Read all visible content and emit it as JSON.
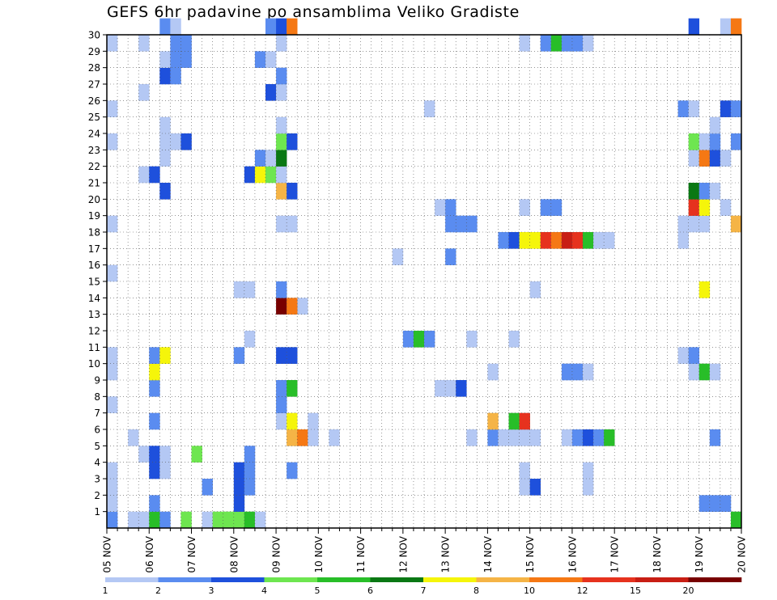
{
  "chart_data": {
    "type": "heatmap",
    "title": "GEFS 6hr padavine po ansamblima Veliko Gradiste",
    "xlabel": "",
    "ylabel": "",
    "x_tick_labels": [
      "05 NOV",
      "06 NOV",
      "07 NOV",
      "08 NOV",
      "09 NOV",
      "10 NOV",
      "11 NOV",
      "12 NOV",
      "13 NOV",
      "14 NOV",
      "15 NOV",
      "16 NOV",
      "17 NOV",
      "18 NOV",
      "19 NOV",
      "20 NOV"
    ],
    "time_steps_per_day": 4,
    "y_tick_labels": [
      "1",
      "2",
      "3",
      "4",
      "5",
      "6",
      "7",
      "8",
      "9",
      "10",
      "11",
      "12",
      "13",
      "14",
      "15",
      "16",
      "17",
      "18",
      "19",
      "20",
      "21",
      "22",
      "23",
      "24",
      "25",
      "26",
      "27",
      "28",
      "29",
      "30"
    ],
    "ylim": [
      0,
      30
    ],
    "grid": "dotted",
    "legend": {
      "placement": "bottom",
      "levels": [
        "1",
        "2",
        "3",
        "4",
        "5",
        "6",
        "7",
        "8",
        "10",
        "12",
        "15",
        "20"
      ],
      "colors": [
        "#b4c8f4",
        "#5a8cf0",
        "#1e50dc",
        "#6ee650",
        "#28be28",
        "#0a7814",
        "#f5f50a",
        "#f5b446",
        "#f57814",
        "#e6321e",
        "#c81e14",
        "#780000"
      ]
    },
    "cells_note": "each cell: [time_step_index (6-h steps from 05 NOV 00Z), member (0 = row below 1, 1..30), color_class_index into legend.colors]",
    "cells": [
      [
        0,
        0,
        1
      ],
      [
        2,
        0,
        0
      ],
      [
        3,
        0,
        0
      ],
      [
        4,
        0,
        4
      ],
      [
        5,
        0,
        1
      ],
      [
        7,
        0,
        3
      ],
      [
        9,
        0,
        0
      ],
      [
        10,
        0,
        3
      ],
      [
        11,
        0,
        3
      ],
      [
        12,
        0,
        3
      ],
      [
        13,
        0,
        4
      ],
      [
        14,
        0,
        0
      ],
      [
        59,
        0,
        4
      ],
      [
        0,
        1,
        0
      ],
      [
        4,
        1,
        1
      ],
      [
        12,
        1,
        2
      ],
      [
        56,
        1,
        1
      ],
      [
        57,
        1,
        1
      ],
      [
        58,
        1,
        1
      ],
      [
        0,
        2,
        0
      ],
      [
        9,
        2,
        1
      ],
      [
        12,
        2,
        2
      ],
      [
        13,
        2,
        1
      ],
      [
        39,
        2,
        0
      ],
      [
        40,
        2,
        2
      ],
      [
        45,
        2,
        0
      ],
      [
        0,
        3,
        0
      ],
      [
        4,
        3,
        2
      ],
      [
        5,
        3,
        0
      ],
      [
        12,
        3,
        2
      ],
      [
        13,
        3,
        1
      ],
      [
        39,
        3,
        0
      ],
      [
        45,
        3,
        0
      ],
      [
        17,
        3,
        1
      ],
      [
        3,
        4,
        0
      ],
      [
        4,
        4,
        2
      ],
      [
        5,
        4,
        0
      ],
      [
        8,
        4,
        3
      ],
      [
        13,
        4,
        1
      ],
      [
        2,
        5,
        0
      ],
      [
        17,
        5,
        7
      ],
      [
        18,
        5,
        8
      ],
      [
        19,
        5,
        0
      ],
      [
        21,
        5,
        0
      ],
      [
        34,
        5,
        0
      ],
      [
        36,
        5,
        1
      ],
      [
        37,
        5,
        0
      ],
      [
        38,
        5,
        0
      ],
      [
        39,
        5,
        0
      ],
      [
        40,
        5,
        0
      ],
      [
        43,
        5,
        0
      ],
      [
        44,
        5,
        1
      ],
      [
        45,
        5,
        2
      ],
      [
        46,
        5,
        1
      ],
      [
        47,
        5,
        4
      ],
      [
        57,
        5,
        1
      ],
      [
        4,
        6,
        1
      ],
      [
        16,
        6,
        0
      ],
      [
        17,
        6,
        6
      ],
      [
        19,
        6,
        0
      ],
      [
        36,
        6,
        7
      ],
      [
        38,
        6,
        4
      ],
      [
        39,
        6,
        9
      ],
      [
        0,
        7,
        0
      ],
      [
        16,
        7,
        1
      ],
      [
        4,
        8,
        1
      ],
      [
        16,
        8,
        1
      ],
      [
        17,
        8,
        4
      ],
      [
        31,
        8,
        0
      ],
      [
        32,
        8,
        0
      ],
      [
        33,
        8,
        2
      ],
      [
        0,
        9,
        0
      ],
      [
        4,
        9,
        6
      ],
      [
        36,
        9,
        0
      ],
      [
        43,
        9,
        1
      ],
      [
        44,
        9,
        1
      ],
      [
        45,
        9,
        0
      ],
      [
        55,
        9,
        0
      ],
      [
        56,
        9,
        4
      ],
      [
        57,
        9,
        0
      ],
      [
        0,
        10,
        0
      ],
      [
        4,
        10,
        1
      ],
      [
        5,
        10,
        6
      ],
      [
        12,
        10,
        1
      ],
      [
        16,
        10,
        2
      ],
      [
        17,
        10,
        2
      ],
      [
        54,
        10,
        0
      ],
      [
        55,
        10,
        1
      ],
      [
        13,
        11,
        0
      ],
      [
        28,
        11,
        1
      ],
      [
        29,
        11,
        4
      ],
      [
        30,
        11,
        1
      ],
      [
        34,
        11,
        0
      ],
      [
        38,
        11,
        0
      ],
      [
        18,
        13,
        0
      ],
      [
        16,
        13,
        11
      ],
      [
        17,
        13,
        8
      ],
      [
        12,
        14,
        0
      ],
      [
        13,
        14,
        0
      ],
      [
        16,
        14,
        1
      ],
      [
        40,
        14,
        0
      ],
      [
        56,
        14,
        6
      ],
      [
        0,
        15,
        0
      ],
      [
        27,
        16,
        0
      ],
      [
        32,
        16,
        1
      ],
      [
        37,
        17,
        1
      ],
      [
        38,
        17,
        2
      ],
      [
        39,
        17,
        6
      ],
      [
        40,
        17,
        6
      ],
      [
        41,
        17,
        9
      ],
      [
        42,
        17,
        8
      ],
      [
        43,
        17,
        10
      ],
      [
        44,
        17,
        9
      ],
      [
        45,
        17,
        4
      ],
      [
        46,
        17,
        0
      ],
      [
        47,
        17,
        0
      ],
      [
        54,
        17,
        0
      ],
      [
        0,
        18,
        0
      ],
      [
        16,
        18,
        0
      ],
      [
        17,
        18,
        0
      ],
      [
        32,
        18,
        1
      ],
      [
        33,
        18,
        1
      ],
      [
        34,
        18,
        1
      ],
      [
        54,
        18,
        0
      ],
      [
        55,
        18,
        0
      ],
      [
        56,
        18,
        0
      ],
      [
        59,
        18,
        7
      ],
      [
        31,
        19,
        0
      ],
      [
        32,
        19,
        1
      ],
      [
        39,
        19,
        0
      ],
      [
        41,
        19,
        1
      ],
      [
        42,
        19,
        1
      ],
      [
        55,
        19,
        9
      ],
      [
        56,
        19,
        6
      ],
      [
        58,
        19,
        0
      ],
      [
        5,
        20,
        2
      ],
      [
        16,
        20,
        7
      ],
      [
        17,
        20,
        2
      ],
      [
        55,
        20,
        5
      ],
      [
        56,
        20,
        1
      ],
      [
        57,
        20,
        0
      ],
      [
        3,
        21,
        0
      ],
      [
        4,
        21,
        2
      ],
      [
        13,
        21,
        2
      ],
      [
        14,
        21,
        6
      ],
      [
        15,
        21,
        3
      ],
      [
        16,
        21,
        0
      ],
      [
        5,
        22,
        0
      ],
      [
        14,
        22,
        1
      ],
      [
        15,
        22,
        0
      ],
      [
        16,
        22,
        5
      ],
      [
        55,
        22,
        0
      ],
      [
        56,
        22,
        8
      ],
      [
        57,
        22,
        2
      ],
      [
        58,
        22,
        0
      ],
      [
        0,
        23,
        0
      ],
      [
        5,
        23,
        0
      ],
      [
        6,
        23,
        0
      ],
      [
        7,
        23,
        2
      ],
      [
        16,
        23,
        3
      ],
      [
        17,
        23,
        2
      ],
      [
        55,
        23,
        3
      ],
      [
        56,
        23,
        0
      ],
      [
        57,
        23,
        1
      ],
      [
        59,
        23,
        1
      ],
      [
        5,
        24,
        0
      ],
      [
        16,
        24,
        0
      ],
      [
        57,
        24,
        0
      ],
      [
        0,
        25,
        0
      ],
      [
        30,
        25,
        0
      ],
      [
        54,
        25,
        1
      ],
      [
        55,
        25,
        0
      ],
      [
        58,
        25,
        2
      ],
      [
        59,
        25,
        1
      ],
      [
        3,
        26,
        0
      ],
      [
        15,
        26,
        2
      ],
      [
        16,
        26,
        0
      ],
      [
        5,
        27,
        2
      ],
      [
        6,
        27,
        1
      ],
      [
        16,
        27,
        1
      ],
      [
        5,
        28,
        0
      ],
      [
        6,
        28,
        1
      ],
      [
        7,
        28,
        1
      ],
      [
        14,
        28,
        1
      ],
      [
        15,
        28,
        0
      ],
      [
        0,
        29,
        0
      ],
      [
        3,
        29,
        0
      ],
      [
        6,
        29,
        1
      ],
      [
        7,
        29,
        1
      ],
      [
        16,
        29,
        0
      ],
      [
        39,
        29,
        0
      ],
      [
        41,
        29,
        1
      ],
      [
        42,
        29,
        4
      ],
      [
        43,
        29,
        1
      ],
      [
        44,
        29,
        1
      ],
      [
        45,
        29,
        0
      ],
      [
        5,
        30,
        1
      ],
      [
        6,
        30,
        0
      ],
      [
        15,
        30,
        1
      ],
      [
        16,
        30,
        2
      ],
      [
        17,
        30,
        8
      ],
      [
        55,
        30,
        2
      ],
      [
        58,
        30,
        0
      ],
      [
        59,
        30,
        8
      ]
    ]
  }
}
